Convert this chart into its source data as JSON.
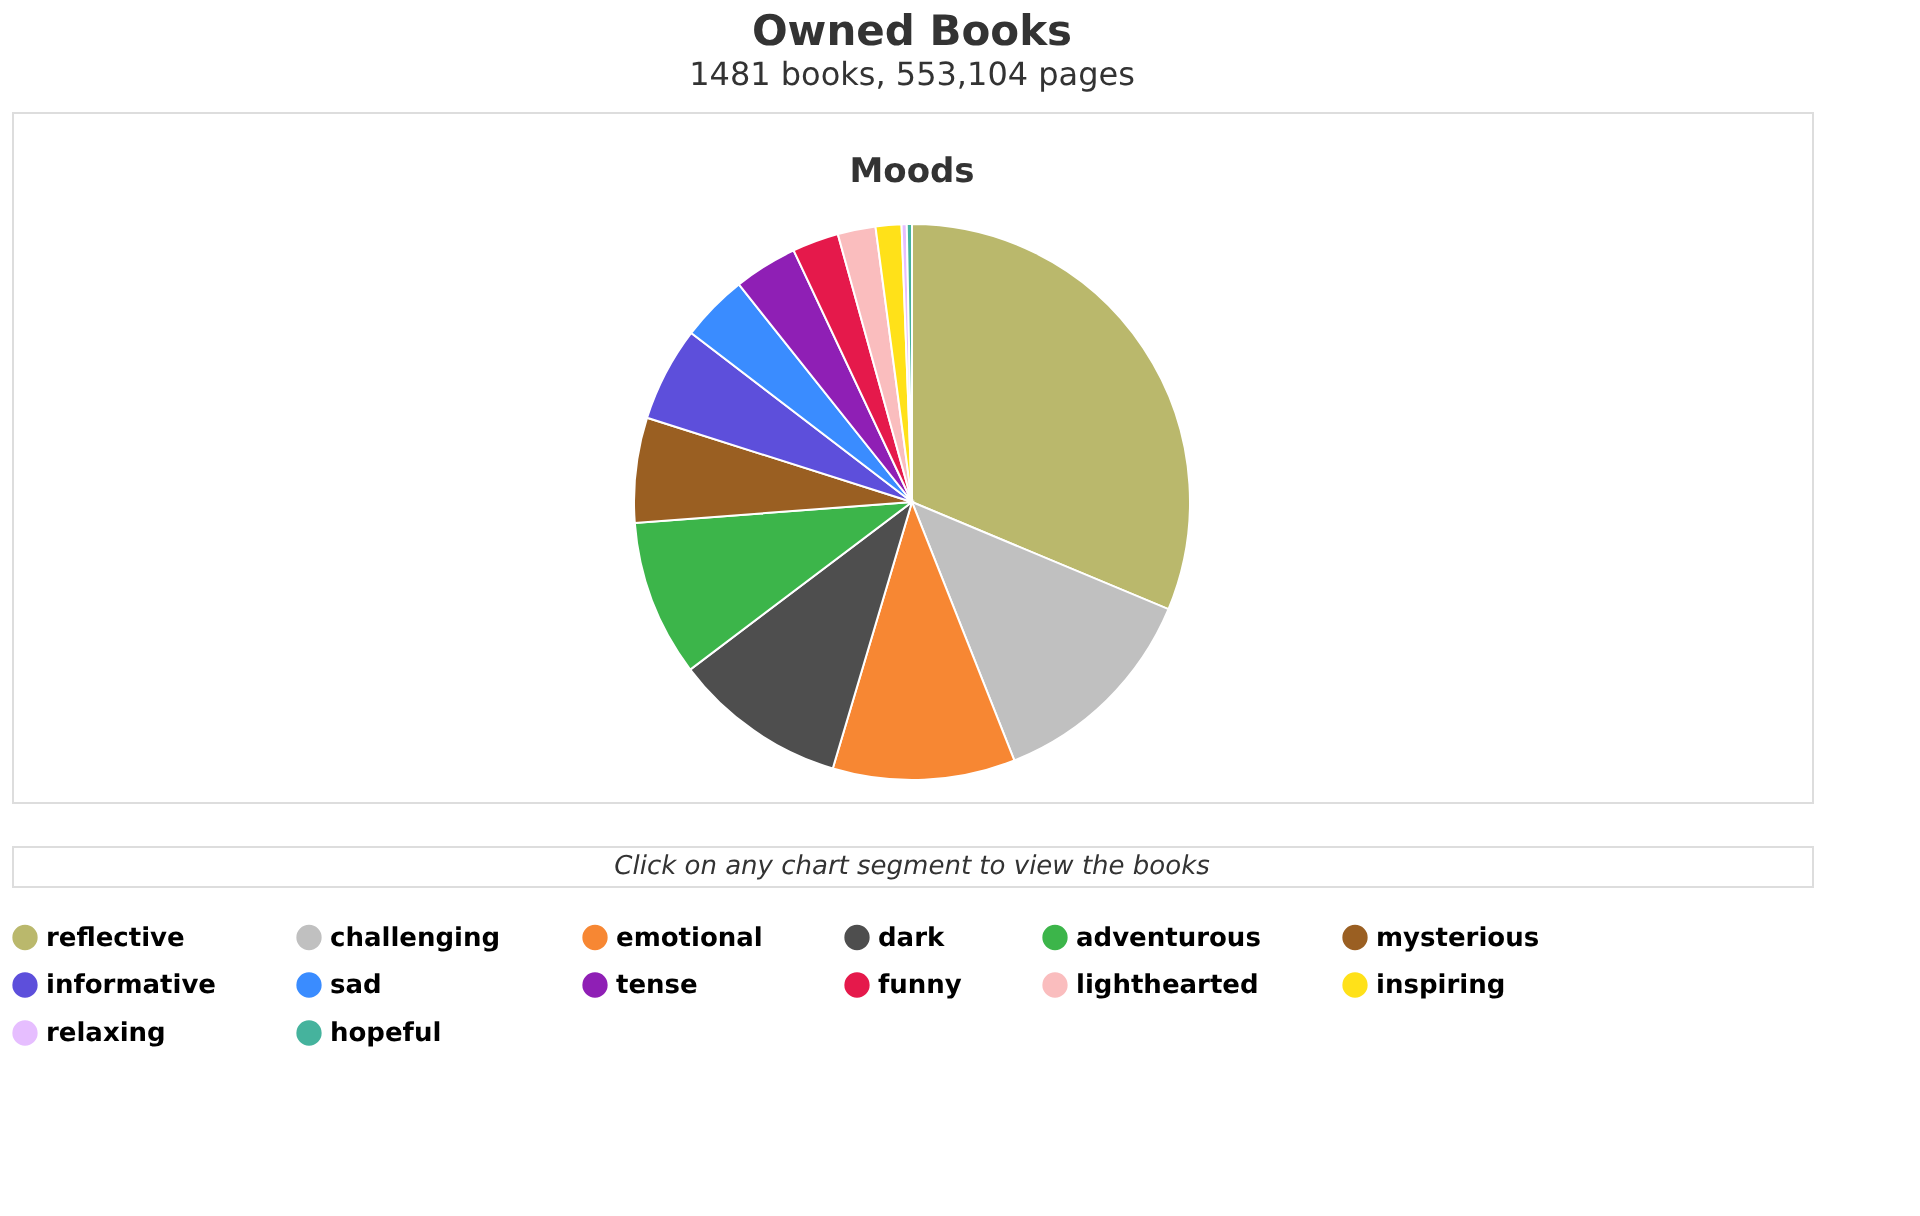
{
  "chart_data": {
    "type": "pie",
    "title": "Owned Books",
    "subtitle": "1481 books, 553,104 pages",
    "annotations": [
      "Moods",
      "Click on any chart segment to view the books"
    ],
    "categories": [
      "reflective",
      "challenging",
      "emotional",
      "dark",
      "adventurous",
      "mysterious",
      "informative",
      "sad",
      "tense",
      "funny",
      "lighthearted",
      "inspiring",
      "relaxing",
      "hopeful"
    ],
    "values": [
      31.3,
      12.7,
      10.6,
      10.1,
      9.1,
      6.1,
      5.5,
      3.9,
      3.7,
      2.7,
      2.2,
      1.5,
      0.3,
      0.3
    ],
    "colors": [
      "#bab86c",
      "#c0c0c0",
      "#f78733",
      "#4e4e4e",
      "#3cb54a",
      "#9a5f22",
      "#5d4fdb",
      "#3a8cff",
      "#8f1fb5",
      "#e5194b",
      "#fabdbe",
      "#ffe119",
      "#e6beff",
      "#45b39d"
    ],
    "legend": "bottom"
  }
}
